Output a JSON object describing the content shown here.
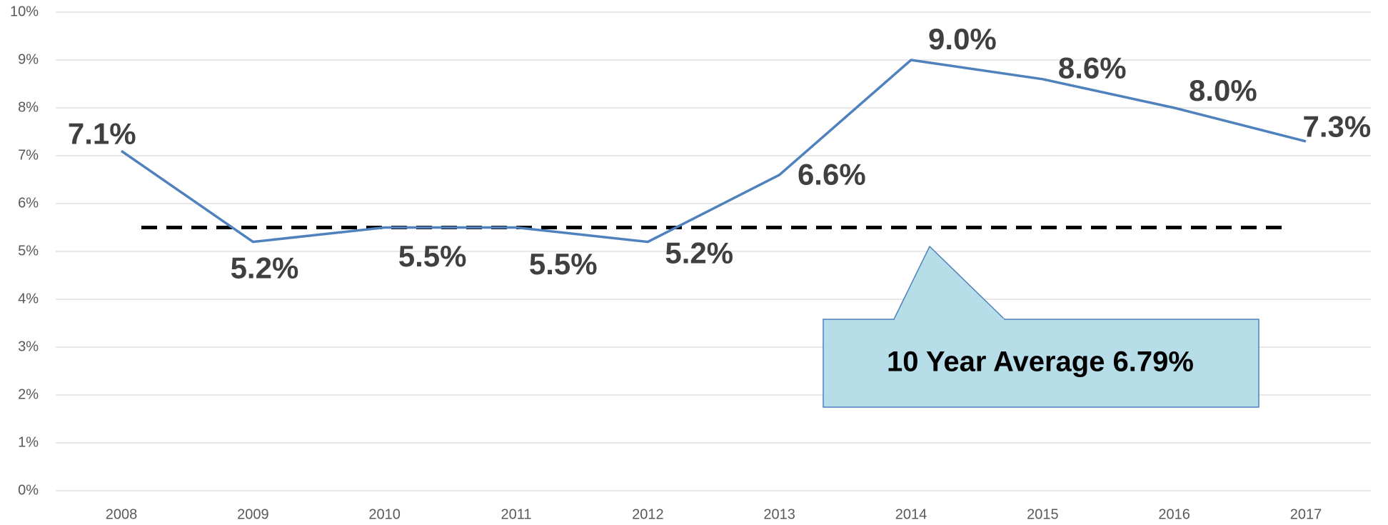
{
  "chart_data": {
    "type": "line",
    "categories": [
      "2008",
      "2009",
      "2010",
      "2011",
      "2012",
      "2013",
      "2014",
      "2015",
      "2016",
      "2017"
    ],
    "series": [
      {
        "color": "#4f81bd",
        "values": [
          7.1,
          5.2,
          5.5,
          5.5,
          5.2,
          6.6,
          9.0,
          8.6,
          8.0,
          7.3
        ],
        "value_labels": [
          "7.1%",
          "5.2%",
          "5.5%",
          "5.5%",
          "5.2%",
          "6.6%",
          "9.0%",
          "8.6%",
          "8.0%",
          "7.3%"
        ]
      }
    ],
    "ylim": [
      0,
      10
    ],
    "yticks": [
      {
        "value": 0,
        "label": "0%"
      },
      {
        "value": 1,
        "label": "1%"
      },
      {
        "value": 2,
        "label": "2%"
      },
      {
        "value": 3,
        "label": "3%"
      },
      {
        "value": 4,
        "label": "4%"
      },
      {
        "value": 5,
        "label": "5%"
      },
      {
        "value": 6,
        "label": "6%"
      },
      {
        "value": 7,
        "label": "7%"
      },
      {
        "value": 8,
        "label": "8%"
      },
      {
        "value": 9,
        "label": "9%"
      },
      {
        "value": 10,
        "label": "10%"
      }
    ],
    "grid": true,
    "reference_line": {
      "value": 5.5,
      "color": "#000000"
    },
    "annotation": "10 Year Average 6.79%"
  }
}
